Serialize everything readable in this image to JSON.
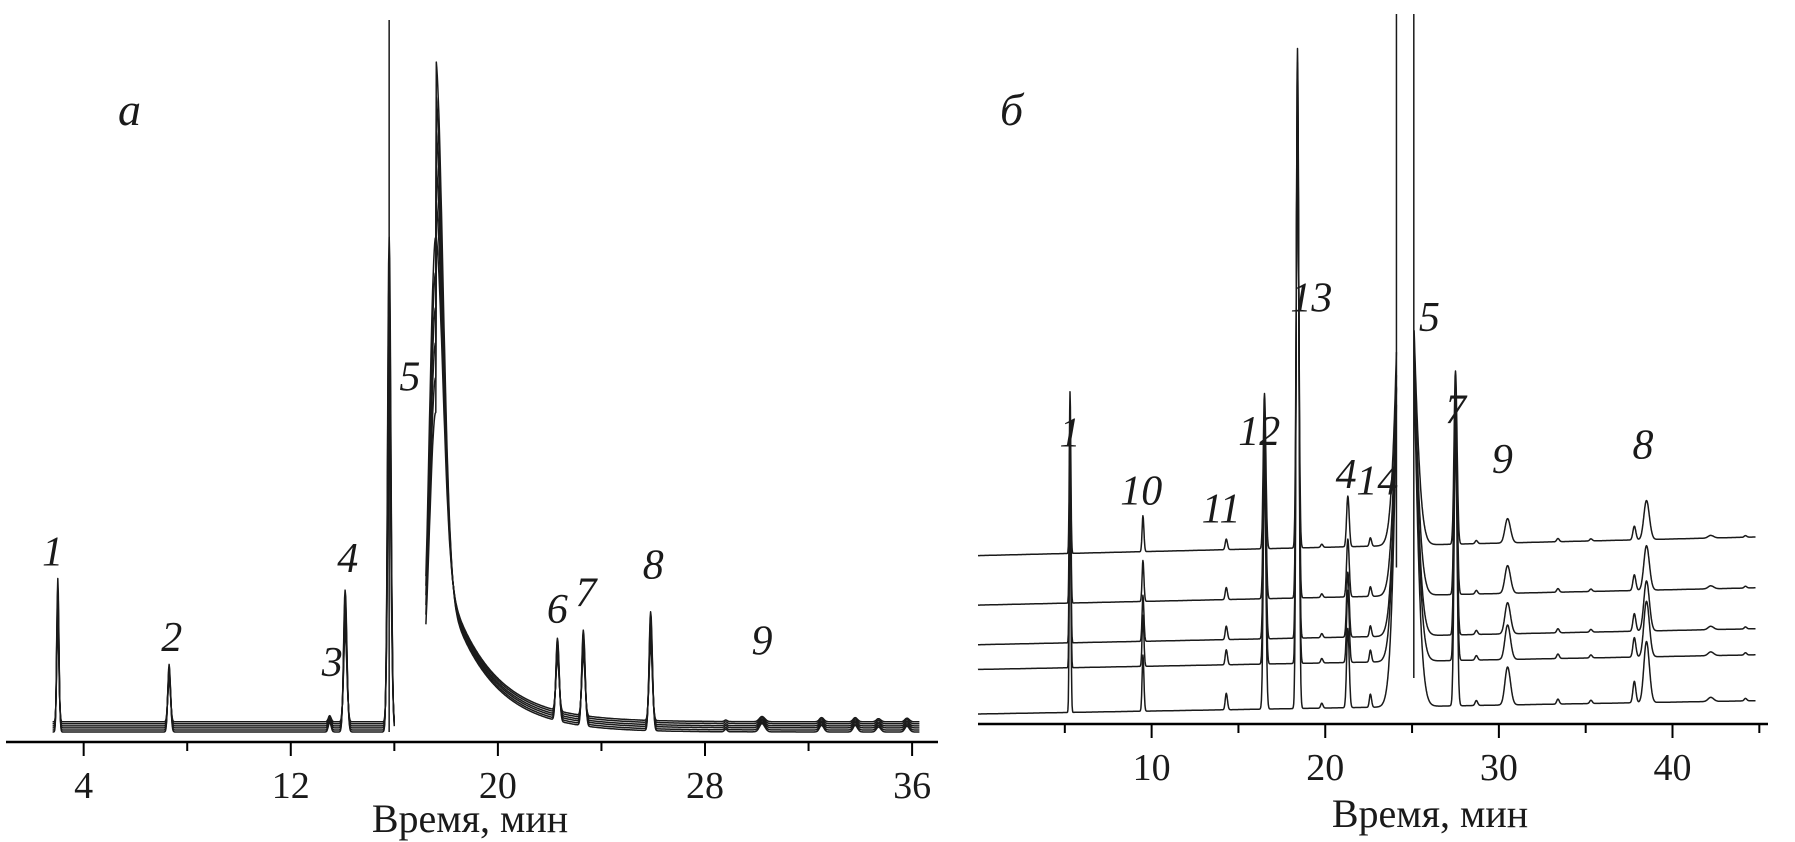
{
  "chart_data": [
    {
      "type": "line",
      "panel_label": "а",
      "xlabel": "Время, мин",
      "ylabel": "",
      "xlim": [
        1,
        37
      ],
      "major_ticks": [
        4,
        12,
        20,
        28,
        36
      ],
      "minor_ticks": [
        8,
        16,
        24,
        32
      ],
      "grid": false,
      "legend": "none",
      "series_count": 6,
      "baselines": [
        0.0,
        0.12,
        0.25,
        0.37,
        0.5,
        0.62
      ],
      "peaks": [
        {
          "label": "1",
          "x": 3.0,
          "height": 9.3,
          "width": 0.04,
          "label_x": 2.8,
          "label_y": 10.1
        },
        {
          "label": "2",
          "x": 7.3,
          "height": 4.1,
          "width": 0.05,
          "label_x": 7.4,
          "label_y": 4.9
        },
        {
          "label": "3",
          "x": 13.5,
          "height": 0.6,
          "width": 0.05,
          "label_x": 13.6,
          "label_y": 3.4
        },
        {
          "label": "4",
          "x": 14.1,
          "height": 8.6,
          "width": 0.06,
          "label_x": 14.2,
          "label_y": 9.7
        },
        {
          "label": "5",
          "x": 15.8,
          "height": 30,
          "width": 0.06,
          "label_x": 16.6,
          "label_y": 20.7
        },
        {
          "label": "5",
          "x": 17.6,
          "height": 30,
          "width": 0.25,
          "tailing": true
        },
        {
          "label": "6",
          "x": 22.3,
          "height": 5.0,
          "width": 0.06,
          "label_x": 22.3,
          "label_y": 6.6
        },
        {
          "label": "7",
          "x": 23.3,
          "height": 5.8,
          "width": 0.06,
          "label_x": 23.4,
          "label_y": 7.6
        },
        {
          "label": "8",
          "x": 25.9,
          "height": 7.2,
          "width": 0.06,
          "label_x": 26.0,
          "label_y": 9.3
        },
        {
          "label": "9",
          "x": 30.2,
          "height": 0.5,
          "width": 0.1,
          "label_x": 30.2,
          "label_y": 4.7
        },
        {
          "label": "",
          "x": 28.8,
          "height": 0.15,
          "width": 0.05
        },
        {
          "label": "",
          "x": 32.5,
          "height": 0.4,
          "width": 0.08
        },
        {
          "label": "",
          "x": 33.8,
          "height": 0.4,
          "width": 0.08
        },
        {
          "label": "",
          "x": 34.7,
          "height": 0.3,
          "width": 0.08
        },
        {
          "label": "",
          "x": 35.8,
          "height": 0.35,
          "width": 0.08
        }
      ]
    },
    {
      "type": "line",
      "panel_label": "б",
      "xlabel": "Время, мин",
      "ylabel": "",
      "xlim": [
        0,
        45.5
      ],
      "major_ticks": [
        10,
        20,
        30,
        40
      ],
      "minor_ticks": [
        5,
        15,
        25,
        35,
        45
      ],
      "grid": false,
      "legend": "none",
      "series_count": 5,
      "baselines": [
        0.0,
        2.7,
        4.2,
        6.6,
        9.6
      ],
      "peaks": [
        {
          "label": "1",
          "x": 5.3,
          "height": 15.3,
          "width": 0.04,
          "label_x": 5.3,
          "label_y": 16.2
        },
        {
          "label": "10",
          "x": 9.5,
          "height": 3.4,
          "width": 0.05,
          "label_x": 9.4,
          "label_y": 12.7
        },
        {
          "label": "11",
          "x": 14.3,
          "height": 1.0,
          "width": 0.06,
          "label_x": 14.0,
          "label_y": 11.6
        },
        {
          "label": "12",
          "x": 16.5,
          "height": 14.7,
          "width": 0.07,
          "label_x": 16.2,
          "label_y": 16.3
        },
        {
          "label": "13",
          "x": 18.4,
          "height": 40,
          "width": 0.07,
          "label_x": 19.2,
          "label_y": 24.4
        },
        {
          "label": "4",
          "x": 21.3,
          "height": 4.8,
          "width": 0.07,
          "label_x": 21.2,
          "label_y": 13.7
        },
        {
          "label": "14",
          "x": 22.6,
          "height": 0.8,
          "width": 0.06,
          "label_x": 23.0,
          "label_y": 13.3
        },
        {
          "label": "",
          "x": 19.8,
          "height": 0.3,
          "width": 0.06
        },
        {
          "label": "5",
          "x": 24.6,
          "height": 40,
          "width": 0.4,
          "label_x": 26.0,
          "label_y": 23.2
        },
        {
          "label": "7",
          "x": 27.5,
          "height": 16.4,
          "width": 0.08,
          "label_x": 27.5,
          "label_y": 17.6
        },
        {
          "label": "9",
          "x": 30.5,
          "height": 2.3,
          "width": 0.15,
          "label_x": 30.2,
          "label_y": 14.6
        },
        {
          "label": "",
          "x": 28.7,
          "height": 0.3,
          "width": 0.07
        },
        {
          "label": "",
          "x": 33.4,
          "height": 0.3,
          "width": 0.07
        },
        {
          "label": "",
          "x": 35.3,
          "height": 0.2,
          "width": 0.07
        },
        {
          "label": "",
          "x": 37.8,
          "height": 1.3,
          "width": 0.08
        },
        {
          "label": "8",
          "x": 38.5,
          "height": 3.7,
          "width": 0.15,
          "label_x": 38.3,
          "label_y": 15.5
        },
        {
          "label": "",
          "x": 42.2,
          "height": 0.25,
          "width": 0.15
        },
        {
          "label": "",
          "x": 44.2,
          "height": 0.15,
          "width": 0.07
        }
      ]
    }
  ]
}
